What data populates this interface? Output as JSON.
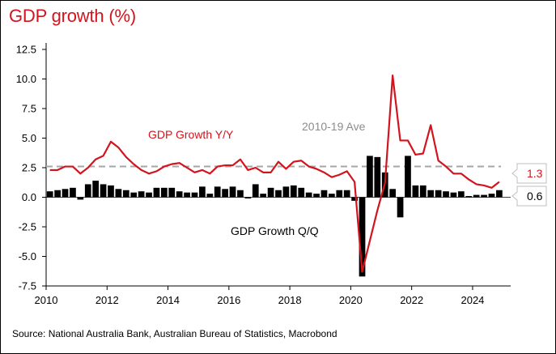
{
  "title": "GDP growth (%)",
  "source": "Source: National Australia Bank, Australian Bureau of Statistics, Macrobond",
  "colors": {
    "yy": "#d2141e",
    "qq": "#000000",
    "ave": "#a6a6a6",
    "frame": "#000000"
  },
  "chart_data": {
    "type": "bar+line",
    "title": "GDP growth (%)",
    "xlim": [
      2010,
      2025.25
    ],
    "ylim": [
      -7.5,
      12.5
    ],
    "x_ticks": [
      "2010",
      "2012",
      "2014",
      "2016",
      "2018",
      "2020",
      "2022",
      "2024"
    ],
    "x_tick_values": [
      2010,
      2012,
      2014,
      2016,
      2018,
      2020,
      2022,
      2024
    ],
    "y_ticks": [
      "12.5",
      "10.0",
      "7.5",
      "5.0",
      "2.5",
      "0.0",
      "-2.5",
      "-5.0",
      "-7.5"
    ],
    "y_tick_values": [
      12.5,
      10,
      7.5,
      5,
      2.5,
      0,
      -2.5,
      -5,
      -7.5
    ],
    "grid": false,
    "annotations": {
      "yy_label": "GDP Growth Y/Y",
      "qq_label": "GDP Growth Q/Q",
      "ave_label": "2010-19 Ave",
      "yy_last": "1.3",
      "qq_last": "0.6"
    },
    "average_2010_19": 2.6,
    "series": [
      {
        "name": "GDP Growth Q/Q",
        "type": "bar",
        "x": [
          2010.0,
          2010.25,
          2010.5,
          2010.75,
          2011.0,
          2011.25,
          2011.5,
          2011.75,
          2012.0,
          2012.25,
          2012.5,
          2012.75,
          2013.0,
          2013.25,
          2013.5,
          2013.75,
          2014.0,
          2014.25,
          2014.5,
          2014.75,
          2015.0,
          2015.25,
          2015.5,
          2015.75,
          2016.0,
          2016.25,
          2016.5,
          2016.75,
          2017.0,
          2017.25,
          2017.5,
          2017.75,
          2018.0,
          2018.25,
          2018.5,
          2018.75,
          2019.0,
          2019.25,
          2019.5,
          2019.75,
          2020.0,
          2020.25,
          2020.5,
          2020.75,
          2021.0,
          2021.25,
          2021.5,
          2021.75,
          2022.0,
          2022.25,
          2022.5,
          2022.75,
          2023.0,
          2023.25,
          2023.5,
          2023.75,
          2024.0,
          2024.25,
          2024.5,
          2024.75
        ],
        "values": [
          0.5,
          0.6,
          0.7,
          0.8,
          -0.2,
          1.1,
          1.4,
          1.1,
          1.0,
          0.7,
          0.6,
          0.4,
          0.5,
          0.4,
          0.8,
          0.8,
          0.8,
          0.5,
          0.4,
          0.4,
          0.9,
          0.3,
          0.9,
          0.7,
          0.9,
          0.6,
          -0.1,
          1.1,
          0.3,
          0.8,
          0.6,
          0.9,
          1.0,
          0.8,
          0.4,
          0.3,
          0.6,
          0.3,
          0.6,
          0.6,
          -0.3,
          -6.7,
          3.5,
          3.4,
          2.1,
          0.7,
          -1.7,
          3.5,
          1.0,
          1.0,
          0.6,
          0.6,
          0.5,
          0.4,
          0.5,
          0.1,
          0.2,
          0.2,
          0.3,
          0.6
        ]
      },
      {
        "name": "GDP Growth Y/Y",
        "type": "line",
        "x": [
          2010.0,
          2010.25,
          2010.5,
          2010.75,
          2011.0,
          2011.25,
          2011.5,
          2011.75,
          2012.0,
          2012.25,
          2012.5,
          2012.75,
          2013.0,
          2013.25,
          2013.5,
          2013.75,
          2014.0,
          2014.25,
          2014.5,
          2014.75,
          2015.0,
          2015.25,
          2015.5,
          2015.75,
          2016.0,
          2016.25,
          2016.5,
          2016.75,
          2017.0,
          2017.25,
          2017.5,
          2017.75,
          2018.0,
          2018.25,
          2018.5,
          2018.75,
          2019.0,
          2019.25,
          2019.5,
          2019.75,
          2020.0,
          2020.25,
          2020.5,
          2020.75,
          2021.0,
          2021.25,
          2021.5,
          2021.75,
          2022.0,
          2022.25,
          2022.5,
          2022.75,
          2023.0,
          2023.25,
          2023.5,
          2023.75,
          2024.0,
          2024.25,
          2024.5,
          2024.75
        ],
        "values": [
          2.3,
          2.3,
          2.6,
          2.6,
          2.0,
          2.5,
          3.2,
          3.5,
          4.7,
          4.2,
          3.4,
          2.8,
          2.3,
          2.0,
          2.2,
          2.6,
          2.8,
          2.9,
          2.5,
          2.1,
          2.3,
          2.0,
          2.6,
          2.7,
          2.7,
          3.2,
          2.3,
          2.5,
          2.1,
          2.1,
          3.0,
          2.4,
          3.0,
          3.1,
          2.6,
          2.4,
          2.1,
          1.7,
          1.9,
          2.2,
          1.3,
          -6.3,
          -3.7,
          -1.1,
          1.2,
          10.3,
          4.8,
          4.8,
          3.6,
          3.7,
          6.1,
          3.1,
          2.6,
          2.0,
          2.0,
          1.5,
          1.1,
          1.0,
          0.8,
          1.3
        ]
      }
    ]
  }
}
